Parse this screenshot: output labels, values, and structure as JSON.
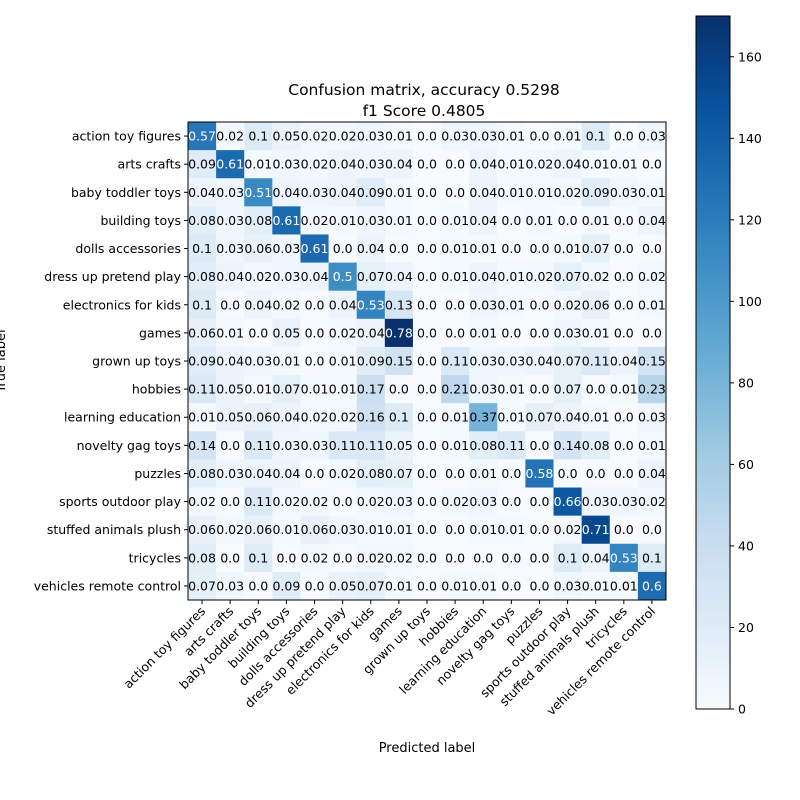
{
  "chart_data": {
    "type": "heatmap",
    "title": "Confusion matrix, accuracy 0.5298",
    "subtitle": "f1 Score 0.4805",
    "xlabel": "Predicted label",
    "ylabel": "True label",
    "labels": [
      "action toy figures",
      "arts crafts",
      "baby toddler toys",
      "building toys",
      "dolls accessories",
      "dress up pretend play",
      "electronics for kids",
      "games",
      "grown up toys",
      "hobbies",
      "learning education",
      "novelty gag toys",
      "puzzles",
      "sports outdoor play",
      "stuffed animals plush",
      "tricycles",
      "vehicles remote control"
    ],
    "values": [
      [
        "0.57",
        "0.02",
        "0.1",
        "0.05",
        "0.02",
        "0.02",
        "0.03",
        "0.01",
        "0.0",
        "0.03",
        "0.03",
        "0.01",
        "0.0",
        "0.01",
        "0.1",
        "0.0",
        "0.03"
      ],
      [
        "0.09",
        "0.61",
        "0.01",
        "0.03",
        "0.02",
        "0.04",
        "0.03",
        "0.04",
        "0.0",
        "0.0",
        "0.04",
        "0.01",
        "0.02",
        "0.04",
        "0.01",
        "0.01",
        "0.0"
      ],
      [
        "0.04",
        "0.03",
        "0.51",
        "0.04",
        "0.03",
        "0.04",
        "0.09",
        "0.01",
        "0.0",
        "0.0",
        "0.04",
        "0.01",
        "0.01",
        "0.02",
        "0.09",
        "0.03",
        "0.01"
      ],
      [
        "0.08",
        "0.03",
        "0.08",
        "0.61",
        "0.02",
        "0.01",
        "0.03",
        "0.01",
        "0.0",
        "0.01",
        "0.04",
        "0.0",
        "0.01",
        "0.0",
        "0.01",
        "0.0",
        "0.04"
      ],
      [
        "0.1",
        "0.03",
        "0.06",
        "0.03",
        "0.61",
        "0.0",
        "0.04",
        "0.0",
        "0.0",
        "0.01",
        "0.01",
        "0.0",
        "0.0",
        "0.01",
        "0.07",
        "0.0",
        "0.0"
      ],
      [
        "0.08",
        "0.04",
        "0.02",
        "0.03",
        "0.04",
        "0.5",
        "0.07",
        "0.04",
        "0.0",
        "0.01",
        "0.04",
        "0.01",
        "0.02",
        "0.07",
        "0.02",
        "0.0",
        "0.02"
      ],
      [
        "0.1",
        "0.0",
        "0.04",
        "0.02",
        "0.0",
        "0.04",
        "0.53",
        "0.13",
        "0.0",
        "0.0",
        "0.03",
        "0.01",
        "0.0",
        "0.02",
        "0.06",
        "0.0",
        "0.01"
      ],
      [
        "0.06",
        "0.01",
        "0.0",
        "0.05",
        "0.0",
        "0.02",
        "0.04",
        "0.78",
        "0.0",
        "0.0",
        "0.01",
        "0.0",
        "0.0",
        "0.03",
        "0.01",
        "0.0",
        "0.0"
      ],
      [
        "0.09",
        "0.04",
        "0.03",
        "0.01",
        "0.0",
        "0.01",
        "0.09",
        "0.15",
        "0.0",
        "0.11",
        "0.03",
        "0.03",
        "0.04",
        "0.07",
        "0.11",
        "0.04",
        "0.15"
      ],
      [
        "0.11",
        "0.05",
        "0.01",
        "0.07",
        "0.01",
        "0.01",
        "0.17",
        "0.0",
        "0.0",
        "0.21",
        "0.03",
        "0.01",
        "0.0",
        "0.07",
        "0.0",
        "0.01",
        "0.23"
      ],
      [
        "0.01",
        "0.05",
        "0.06",
        "0.04",
        "0.02",
        "0.02",
        "0.16",
        "0.1",
        "0.0",
        "0.01",
        "0.37",
        "0.01",
        "0.07",
        "0.04",
        "0.01",
        "0.0",
        "0.03"
      ],
      [
        "0.14",
        "0.0",
        "0.11",
        "0.03",
        "0.03",
        "0.11",
        "0.11",
        "0.05",
        "0.0",
        "0.01",
        "0.08",
        "0.11",
        "0.0",
        "0.14",
        "0.08",
        "0.0",
        "0.01"
      ],
      [
        "0.08",
        "0.03",
        "0.04",
        "0.04",
        "0.0",
        "0.02",
        "0.08",
        "0.07",
        "0.0",
        "0.0",
        "0.01",
        "0.0",
        "0.58",
        "0.0",
        "0.0",
        "0.0",
        "0.04"
      ],
      [
        "0.02",
        "0.0",
        "0.11",
        "0.02",
        "0.02",
        "0.0",
        "0.02",
        "0.03",
        "0.0",
        "0.02",
        "0.03",
        "0.0",
        "0.0",
        "0.66",
        "0.03",
        "0.03",
        "0.02"
      ],
      [
        "0.06",
        "0.02",
        "0.06",
        "0.01",
        "0.06",
        "0.03",
        "0.01",
        "0.01",
        "0.0",
        "0.0",
        "0.01",
        "0.01",
        "0.0",
        "0.02",
        "0.71",
        "0.0",
        "0.0"
      ],
      [
        "0.08",
        "0.0",
        "0.1",
        "0.0",
        "0.02",
        "0.0",
        "0.02",
        "0.02",
        "0.0",
        "0.0",
        "0.0",
        "0.0",
        "0.0",
        "0.1",
        "0.04",
        "0.53",
        "0.1"
      ],
      [
        "0.07",
        "0.03",
        "0.0",
        "0.09",
        "0.0",
        "0.05",
        "0.07",
        "0.01",
        "0.0",
        "0.01",
        "0.01",
        "0.0",
        "0.0",
        "0.03",
        "0.01",
        "0.01",
        "0.6"
      ]
    ],
    "colorbar": {
      "range": [
        0,
        170
      ],
      "ticks": [
        0,
        20,
        40,
        60,
        80,
        100,
        120,
        140,
        160
      ],
      "colormap": "Blues"
    },
    "grid": false
  }
}
